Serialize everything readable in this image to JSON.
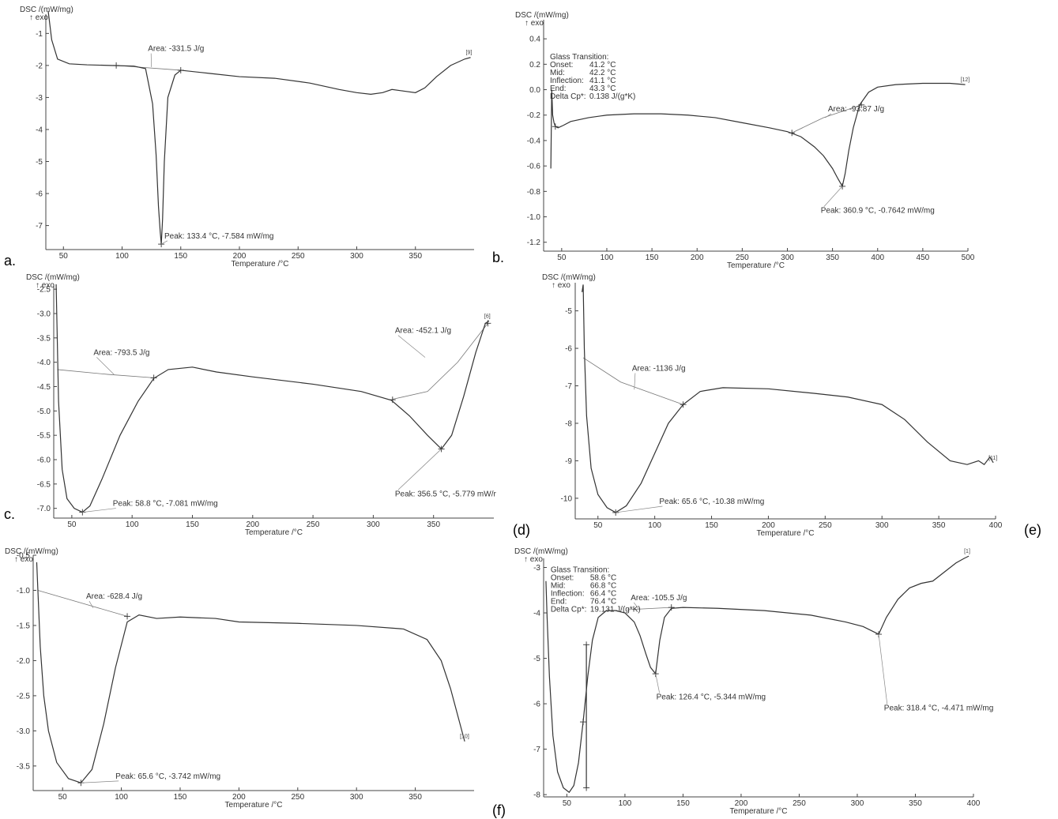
{
  "panel_labels": [
    "a.",
    "b.",
    "c.",
    "(d)",
    "(e)",
    "(f)"
  ],
  "chart_data": [
    {
      "type": "line",
      "ylabel_line1": "DSC /(mW/mg)",
      "ylabel_line2": "↑ exo",
      "xlabel": "Temperature /°C",
      "xlim": [
        35,
        400
      ],
      "ylim": [
        -7.75,
        -0.4
      ],
      "xticks": [
        50,
        100,
        150,
        200,
        250,
        300,
        350
      ],
      "yticks": [
        -7,
        -6,
        -5,
        -4,
        -3,
        -2,
        -1
      ],
      "tag": "[9]",
      "series": [
        {
          "x": [
            37,
            40,
            45,
            55,
            70,
            90,
            110,
            120,
            126,
            129,
            131,
            132.5,
            133.4,
            134.5,
            136,
            139,
            145,
            150,
            175,
            200,
            230,
            260,
            285,
            300,
            312,
            322,
            330,
            340,
            350,
            358,
            368,
            380,
            392,
            397
          ],
          "y": [
            -0.3,
            -1.2,
            -1.8,
            -1.95,
            -1.98,
            -2.0,
            -2.02,
            -2.1,
            -3.2,
            -4.8,
            -6.4,
            -7.2,
            -7.58,
            -6.8,
            -5.0,
            -3.0,
            -2.3,
            -2.15,
            -2.25,
            -2.35,
            -2.4,
            -2.55,
            -2.75,
            -2.85,
            -2.9,
            -2.85,
            -2.75,
            -2.8,
            -2.85,
            -2.7,
            -2.35,
            -2.0,
            -1.8,
            -1.75
          ]
        }
      ],
      "baselines": [
        {
          "x": [
            95,
            150
          ],
          "y": [
            -2.0,
            -2.15
          ]
        }
      ],
      "markers": [
        {
          "x": 95,
          "y": -2.0
        },
        {
          "x": 150,
          "y": -2.15
        },
        {
          "x": 133.4,
          "y": -7.58
        }
      ],
      "annotations": [
        {
          "text": "Area: -331.5 J/g",
          "x": 122,
          "y": -1.55,
          "px": 125,
          "py": -2.05
        },
        {
          "text": "Peak: 133.4 °C, -7.584 mW/mg",
          "x": 136,
          "y": -7.4,
          "px": 133.4,
          "py": -7.58
        }
      ]
    },
    {
      "type": "line",
      "ylabel_line1": "DSC /(mW/mg)",
      "ylabel_line2": "↑ exo",
      "xlabel": "Temperature /°C",
      "xlim": [
        30,
        500
      ],
      "ylim": [
        -1.27,
        0.55
      ],
      "xticks": [
        50,
        100,
        150,
        200,
        250,
        300,
        350,
        400,
        450,
        500
      ],
      "yticks": [
        0.4,
        0.2,
        0.0,
        -0.2,
        -0.4,
        -0.6,
        -0.8,
        -1.0,
        -1.2
      ],
      "yticklabels": [
        "0.4",
        "0.2",
        "0.0",
        "-0.2",
        "-0.4",
        "-0.6",
        "-0.8",
        "-1.0",
        "-1.2"
      ],
      "tag": "[12]",
      "glass_transition": {
        "title": "Glass Transition:",
        "rows": [
          {
            "label": "Onset:",
            "value": "41.2 °C"
          },
          {
            "label": "Mid:",
            "value": "42.2 °C"
          },
          {
            "label": "Inflection:",
            "value": "41.1 °C"
          },
          {
            "label": "End:",
            "value": "43.3 °C"
          },
          {
            "label": "Delta Cp*:",
            "value": "0.138 J/(g*K)"
          }
        ],
        "anchor": {
          "x": 37,
          "y": 0.24
        }
      },
      "series": [
        {
          "x": [
            38,
            39,
            40,
            41.5,
            43,
            46,
            52,
            60,
            80,
            100,
            130,
            160,
            190,
            220,
            250,
            280,
            300,
            315,
            330,
            340,
            350,
            356,
            360.9,
            364,
            368,
            373,
            380,
            390,
            400,
            420,
            450,
            480,
            497
          ],
          "y": [
            -0.62,
            0.0,
            -0.2,
            -0.26,
            -0.29,
            -0.3,
            -0.28,
            -0.25,
            -0.22,
            -0.2,
            -0.19,
            -0.19,
            -0.2,
            -0.22,
            -0.26,
            -0.3,
            -0.33,
            -0.37,
            -0.45,
            -0.52,
            -0.62,
            -0.7,
            -0.76,
            -0.66,
            -0.48,
            -0.3,
            -0.12,
            -0.02,
            0.02,
            0.04,
            0.05,
            0.05,
            0.04
          ]
        }
      ],
      "baselines": [
        {
          "x": [
            305,
            340,
            382
          ],
          "y": [
            -0.34,
            -0.22,
            -0.12
          ]
        }
      ],
      "markers": [
        {
          "x": 43,
          "y": -0.29
        },
        {
          "x": 305,
          "y": -0.34
        },
        {
          "x": 382,
          "y": -0.12
        },
        {
          "x": 360.9,
          "y": -0.76
        }
      ],
      "annotations": [
        {
          "text": "Area: -93.87 J/g",
          "x": 345,
          "y": -0.17,
          "px": 342,
          "py": -0.22
        },
        {
          "text": "Peak: 360.9 °C, -0.7642 mW/mg",
          "x": 337,
          "y": -0.97,
          "px": 360.9,
          "py": -0.76
        }
      ]
    },
    {
      "type": "line",
      "ylabel_line1": "DSC /(mW/mg)",
      "ylabel_line2": "↑ exo",
      "xlabel": "Temperature /°C",
      "xlim": [
        35,
        400
      ],
      "ylim": [
        -7.2,
        -2.4
      ],
      "xticks": [
        50,
        100,
        150,
        200,
        250,
        300,
        350
      ],
      "yticks": [
        -2.5,
        -3.0,
        -3.5,
        -4.0,
        -4.5,
        -5.0,
        -5.5,
        -6.0,
        -6.5,
        -7.0
      ],
      "yticklabels": [
        "-2.5",
        "-3.0",
        "-3.5",
        "-4.0",
        "-4.5",
        "-5.0",
        "-5.5",
        "-6.0",
        "-6.5",
        "-7.0"
      ],
      "tag": "[6]",
      "series": [
        {
          "x": [
            37,
            39,
            42,
            46,
            52,
            58.8,
            65,
            75,
            90,
            105,
            118,
            130,
            150,
            170,
            200,
            250,
            290,
            315,
            330,
            345,
            356.5,
            365,
            375,
            385,
            393,
            396
          ],
          "y": [
            -2.4,
            -4.8,
            -6.2,
            -6.8,
            -7.0,
            -7.08,
            -6.95,
            -6.4,
            -5.5,
            -4.8,
            -4.33,
            -4.15,
            -4.1,
            -4.2,
            -4.3,
            -4.45,
            -4.6,
            -4.78,
            -5.1,
            -5.5,
            -5.78,
            -5.5,
            -4.7,
            -3.8,
            -3.2,
            -3.15
          ]
        }
      ],
      "baselines": [
        {
          "x": [
            38,
            80,
            118
          ],
          "y": [
            -4.15,
            -4.25,
            -4.32
          ]
        },
        {
          "x": [
            316,
            345,
            370,
            395
          ],
          "y": [
            -4.76,
            -4.6,
            -4.0,
            -3.2
          ]
        }
      ],
      "markers": [
        {
          "x": 118,
          "y": -4.32
        },
        {
          "x": 316,
          "y": -4.77
        },
        {
          "x": 58.8,
          "y": -7.08
        },
        {
          "x": 356.5,
          "y": -5.78
        },
        {
          "x": 395,
          "y": -3.2
        }
      ],
      "annotations": [
        {
          "text": "Area: -793.5 J/g",
          "x": 68,
          "y": -3.85,
          "px": 85,
          "py": -4.25
        },
        {
          "text": "Area: -452.1 J/g",
          "x": 318,
          "y": -3.4,
          "px": 343,
          "py": -3.9
        },
        {
          "text": "Peak: 58.8 °C, -7.081 mW/mg",
          "x": 84,
          "y": -6.95,
          "px": 58.8,
          "py": -7.08
        },
        {
          "text": "Peak: 356.5 °C, -5.779 mW/r",
          "x": 318,
          "y": -6.75,
          "px": 356.5,
          "py": -5.78
        }
      ]
    },
    {
      "type": "line",
      "ylabel_line1": "DSC /(mW/mg)",
      "ylabel_line2": "↑ exo",
      "xlabel": "Temperature /°C",
      "xlim": [
        30,
        400
      ],
      "ylim": [
        -10.55,
        -4.25
      ],
      "xticks": [
        50,
        100,
        150,
        200,
        250,
        300,
        350,
        400
      ],
      "yticks": [
        -5,
        -6,
        -7,
        -8,
        -9,
        -10
      ],
      "tag": "[11]",
      "series": [
        {
          "x": [
            36,
            37,
            38,
            40,
            44,
            50,
            58,
            65.6,
            75,
            88,
            100,
            112,
            125,
            140,
            160,
            200,
            240,
            270,
            300,
            320,
            340,
            360,
            375,
            385,
            390,
            395,
            398
          ],
          "y": [
            -4.5,
            -4.3,
            -6.0,
            -7.8,
            -9.2,
            -9.9,
            -10.25,
            -10.38,
            -10.2,
            -9.6,
            -8.8,
            -8.0,
            -7.5,
            -7.15,
            -7.05,
            -7.08,
            -7.2,
            -7.3,
            -7.5,
            -7.9,
            -8.5,
            -9.0,
            -9.1,
            -9.0,
            -9.1,
            -8.9,
            -9.05
          ]
        }
      ],
      "baselines": [
        {
          "x": [
            37,
            70,
            125
          ],
          "y": [
            -6.25,
            -6.9,
            -7.5
          ]
        }
      ],
      "markers": [
        {
          "x": 125,
          "y": -7.5
        },
        {
          "x": 65.6,
          "y": -10.38
        }
      ],
      "annotations": [
        {
          "text": "Area: -1136 J/g",
          "x": 80,
          "y": -6.6,
          "px": 82,
          "py": -7.1
        },
        {
          "text": "Peak: 65.6 °C, -10.38 mW/mg",
          "x": 104,
          "y": -10.15,
          "px": 65.6,
          "py": -10.38
        }
      ]
    },
    {
      "type": "line",
      "ylabel_line1": "DSC /(mW/mg)",
      "ylabel_line2": "↑ exo",
      "xlabel": "Temperature /°C",
      "xlim": [
        25,
        400
      ],
      "ylim": [
        -3.85,
        -0.5
      ],
      "xticks": [
        50,
        100,
        150,
        200,
        250,
        300,
        350
      ],
      "yticks": [
        -0.5,
        -1.0,
        -1.5,
        -2.0,
        -2.5,
        -3.0,
        -3.5
      ],
      "yticklabels": [
        "-0.5",
        "-1.0",
        "-1.5",
        "-2.0",
        "-2.5",
        "-3.0",
        "-3.5"
      ],
      "tag": "[10]",
      "series": [
        {
          "x": [
            28,
            29,
            31,
            34,
            38,
            45,
            55,
            65.6,
            75,
            85,
            95,
            105,
            115,
            130,
            150,
            180,
            200,
            250,
            300,
            340,
            360,
            372,
            380,
            388,
            392
          ],
          "y": [
            -0.6,
            -1.0,
            -1.8,
            -2.5,
            -3.0,
            -3.45,
            -3.68,
            -3.74,
            -3.55,
            -2.9,
            -2.1,
            -1.45,
            -1.35,
            -1.4,
            -1.38,
            -1.4,
            -1.45,
            -1.47,
            -1.5,
            -1.55,
            -1.7,
            -2.0,
            -2.4,
            -2.9,
            -3.15
          ]
        }
      ],
      "baselines": [
        {
          "x": [
            29,
            70,
            105
          ],
          "y": [
            -1.0,
            -1.2,
            -1.37
          ]
        }
      ],
      "markers": [
        {
          "x": 105,
          "y": -1.37
        },
        {
          "x": 65.6,
          "y": -3.74
        }
      ],
      "annotations": [
        {
          "text": "Area: -628.4 J/g",
          "x": 70,
          "y": -1.12,
          "px": 76,
          "py": -1.25
        },
        {
          "text": "Peak: 65.6 °C, -3.742 mW/mg",
          "x": 95,
          "y": -3.68,
          "px": 65.6,
          "py": -3.74
        }
      ]
    },
    {
      "type": "line",
      "ylabel_line1": "DSC /(mW/mg)",
      "ylabel_line2": "↑ exo",
      "xlabel": "Temperature /°C",
      "xlim": [
        30,
        400
      ],
      "ylim": [
        -8.05,
        -2.8
      ],
      "xticks": [
        50,
        100,
        150,
        200,
        250,
        300,
        350,
        400
      ],
      "yticks": [
        -3,
        -4,
        -5,
        -6,
        -7,
        -8
      ],
      "tag": "[1]",
      "glass_transition": {
        "title": "Glass Transition:",
        "rows": [
          {
            "label": "Onset:",
            "value": "58.6 °C"
          },
          {
            "label": "Mid:",
            "value": "66.8 °C"
          },
          {
            "label": "Inflection:",
            "value": "66.4 °C"
          },
          {
            "label": "End:",
            "value": "76.4 °C"
          },
          {
            "label": "Delta Cp*:",
            "value": "19.131 J/(g*K)"
          }
        ],
        "anchor": {
          "x": 36,
          "y": -3.1
        }
      },
      "series": [
        {
          "x": [
            32,
            33,
            35,
            38,
            42,
            47,
            52,
            56,
            60,
            64,
            68,
            72,
            77,
            84,
            92,
            100,
            108,
            113,
            118,
            122,
            126.4,
            130,
            134,
            140,
            150,
            180,
            220,
            260,
            290,
            305,
            318.4,
            325,
            335,
            345,
            355,
            365,
            375,
            385,
            392,
            396
          ],
          "y": [
            -3.3,
            -4.1,
            -5.4,
            -6.7,
            -7.5,
            -7.85,
            -7.95,
            -7.8,
            -7.3,
            -6.4,
            -5.4,
            -4.6,
            -4.1,
            -3.95,
            -3.95,
            -4.0,
            -4.2,
            -4.5,
            -4.9,
            -5.2,
            -5.34,
            -4.6,
            -4.1,
            -3.9,
            -3.88,
            -3.9,
            -3.95,
            -4.05,
            -4.2,
            -4.3,
            -4.47,
            -4.1,
            -3.7,
            -3.45,
            -3.35,
            -3.3,
            -3.1,
            -2.9,
            -2.8,
            -2.75
          ]
        }
      ],
      "baselines": [
        {
          "x": [
            102,
            140
          ],
          "y": [
            -3.93,
            -3.88
          ]
        }
      ],
      "markers": [
        {
          "x": 64,
          "y": -6.4
        },
        {
          "x": 66.8,
          "y": -4.7
        },
        {
          "x": 66.8,
          "y": -7.85
        },
        {
          "x": 140,
          "y": -3.88
        },
        {
          "x": 126.4,
          "y": -5.34
        },
        {
          "x": 318.4,
          "y": -4.47
        }
      ],
      "tg_vertical": {
        "x": 66.8,
        "y1": -4.7,
        "y2": -7.85
      },
      "annotations": [
        {
          "text": "Area: -105.5 J/g",
          "x": 105,
          "y": -3.72,
          "px": 112,
          "py": -3.92
        },
        {
          "text": "Peak: 126.4 °C, -5.344 mW/mg",
          "x": 127,
          "y": -5.9,
          "px": 126.4,
          "py": -5.34
        },
        {
          "text": "Peak: 318.4 °C, -4.471 mW/mg",
          "x": 323,
          "y": -6.15,
          "px": 318.4,
          "py": -4.47
        }
      ]
    }
  ]
}
